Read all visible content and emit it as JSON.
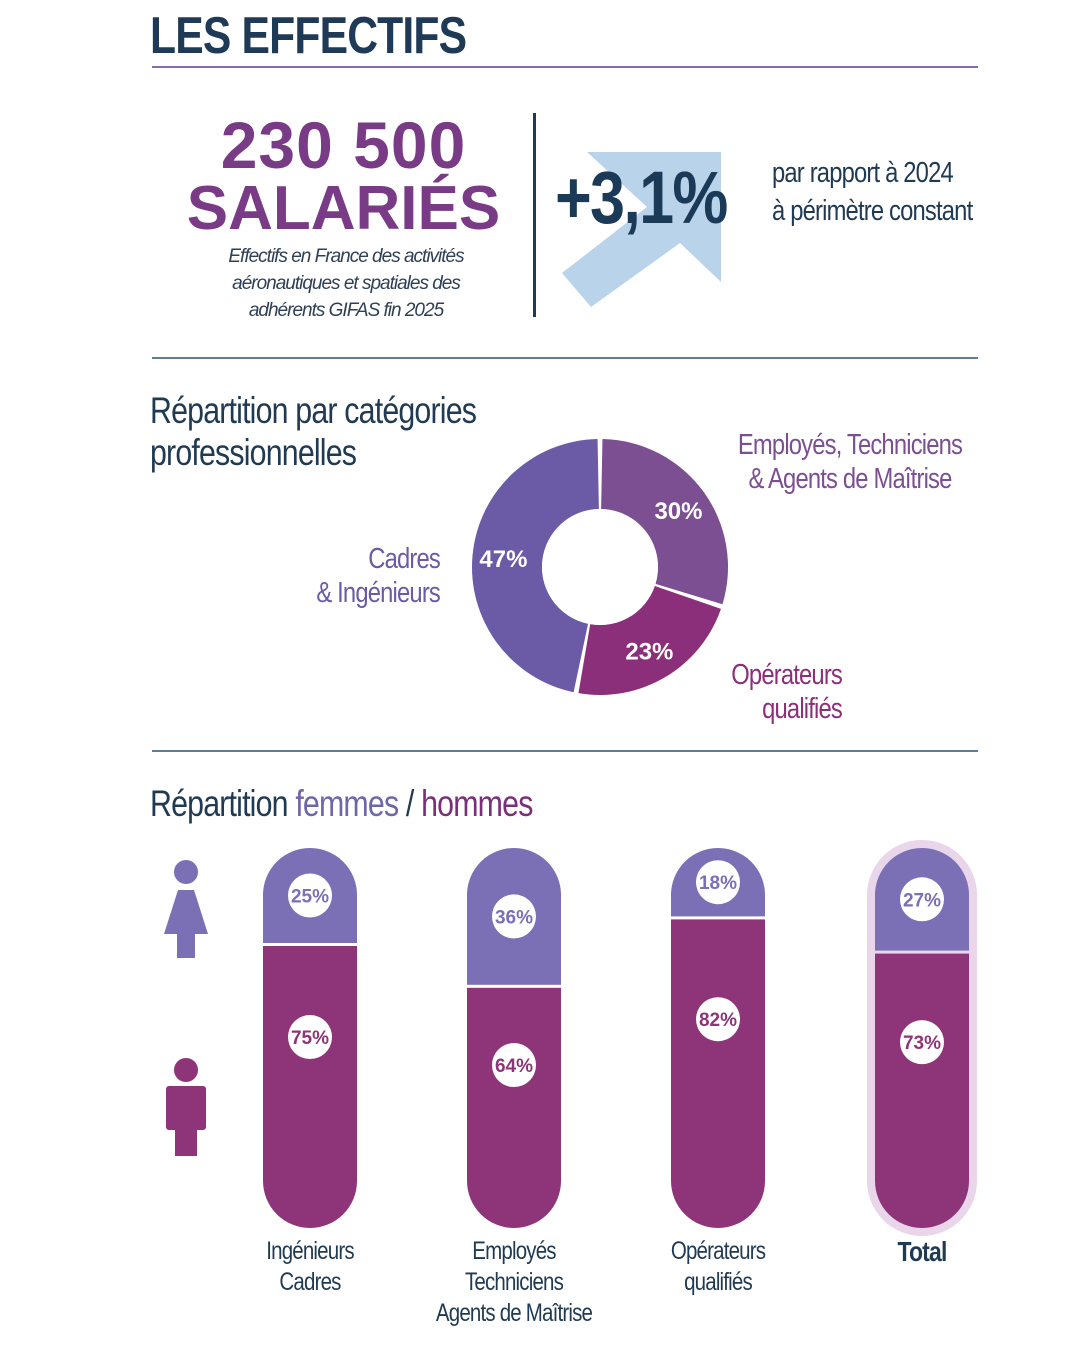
{
  "header": {
    "title": "LES EFFECTIFS"
  },
  "headline": {
    "number": "230 500",
    "unit": "SALARIÉS",
    "caption_lines": [
      "Effectifs en France des activités",
      "aéronautiques et spatiales des",
      "adhérents GIFAS fin 2025"
    ]
  },
  "growth": {
    "value": "+3,1%",
    "text_lines": [
      "par rapport à 2024",
      "à périmètre constant"
    ],
    "arrow_icon": "up-right-arrow-icon",
    "arrow_color": "#b8d3ea"
  },
  "categories_section": {
    "title_lines": [
      "Répartition par catégories",
      "professionnelles"
    ]
  },
  "gender_section": {
    "title_prefix": "Répartition ",
    "title_women": "femmes",
    "title_sep": " / ",
    "title_men": "hommes"
  },
  "icons": {
    "woman": "woman-icon",
    "man": "man-icon"
  },
  "colors": {
    "women": "#7b6fb6",
    "men": "#8e3478",
    "text": "#1f3a52",
    "accent": "#7a3b86"
  },
  "chart_data": [
    {
      "type": "pie",
      "title": "Répartition par catégories professionnelles",
      "series": [
        {
          "label_lines": [
            "Employés, Techniciens",
            "& Agents de Maîtrise"
          ],
          "value": 30,
          "display": "30%",
          "color": "#7c4f92"
        },
        {
          "label_lines": [
            "Opérateurs",
            "qualifiés"
          ],
          "value": 23,
          "display": "23%",
          "color": "#8c2f7a"
        },
        {
          "label_lines": [
            "Cadres",
            "& Ingénieurs"
          ],
          "value": 47,
          "display": "47%",
          "color": "#6b5aa5"
        }
      ]
    },
    {
      "type": "bar",
      "stacked": true,
      "title": "Répartition femmes / hommes",
      "categories": [
        {
          "label_lines": [
            "Ingénieurs",
            "Cadres"
          ],
          "bold": false
        },
        {
          "label_lines": [
            "Employés",
            "Techniciens",
            "Agents de Maîtrise"
          ],
          "bold": false
        },
        {
          "label_lines": [
            "Opérateurs",
            "qualifiés"
          ],
          "bold": false
        },
        {
          "label_lines": [
            "Total"
          ],
          "bold": true
        }
      ],
      "series": [
        {
          "name": "femmes",
          "values": [
            25,
            36,
            18,
            27
          ],
          "labels": [
            "25%",
            "36%",
            "18%",
            "27%"
          ],
          "color": "#7b6fb6"
        },
        {
          "name": "hommes",
          "values": [
            75,
            64,
            82,
            73
          ],
          "labels": [
            "75%",
            "64%",
            "82%",
            "73%"
          ],
          "color": "#8e3478"
        }
      ],
      "ylim": [
        0,
        100
      ]
    }
  ]
}
